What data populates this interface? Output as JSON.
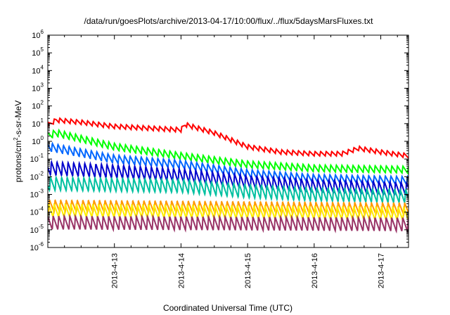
{
  "chart_data": {
    "type": "line",
    "title": "/data/run/goesPlots/archive/2013-04-17/10:00/flux/../flux/5daysMarsFluxes.txt",
    "xlabel": "Coordinated Universal Time (UTC)",
    "ylabel": {
      "base": "protons/cm",
      "exp": "2",
      "rest": "-s-sr-MeV"
    },
    "x_scale": "date",
    "xlim": [
      "2013-04-12 00:00",
      "2013-04-17 10:00"
    ],
    "x_ticks": [
      "2013-4-13",
      "2013-4-14",
      "2013-4-15",
      "2013-4-16",
      "2013-4-17"
    ],
    "y_scale": "log",
    "ylim": [
      1e-06,
      1000000.0
    ],
    "y_ticks": [
      {
        "base": "10",
        "exp": "-6"
      },
      {
        "base": "10",
        "exp": "-5"
      },
      {
        "base": "10",
        "exp": "-4"
      },
      {
        "base": "10",
        "exp": "-3"
      },
      {
        "base": "10",
        "exp": "-2"
      },
      {
        "base": "10",
        "exp": "-1"
      },
      {
        "base": "10",
        "exp": "0"
      },
      {
        "base": "10",
        "exp": "1"
      },
      {
        "base": "10",
        "exp": "2"
      },
      {
        "base": "10",
        "exp": "3"
      },
      {
        "base": "10",
        "exp": "4"
      },
      {
        "base": "10",
        "exp": "5"
      },
      {
        "base": "10",
        "exp": "6"
      }
    ],
    "grid": false,
    "legend": false,
    "series": [
      {
        "color": "#ff0000",
        "sawtooth_ratio": 1.8,
        "envelope": [
          [
            "2013-04-12 00:00",
            8
          ],
          [
            "2013-04-12 03:00",
            16
          ],
          [
            "2013-04-12 12:00",
            12
          ],
          [
            "2013-04-13 00:00",
            7
          ],
          [
            "2013-04-14 00:00",
            4.5
          ],
          [
            "2013-04-14 01:30",
            9
          ],
          [
            "2013-04-14 12:00",
            3
          ],
          [
            "2013-04-15 00:00",
            0.5
          ],
          [
            "2013-04-15 12:00",
            0.25
          ],
          [
            "2013-04-16 00:00",
            0.2
          ],
          [
            "2013-04-16 10:00",
            0.2
          ],
          [
            "2013-04-16 16:00",
            0.4
          ],
          [
            "2013-04-17 00:00",
            0.25
          ],
          [
            "2013-04-17 10:00",
            0.15
          ]
        ]
      },
      {
        "color": "#00ff00",
        "sawtooth_ratio": 2.5,
        "envelope": [
          [
            "2013-04-12 00:00",
            2
          ],
          [
            "2013-04-12 03:00",
            3
          ],
          [
            "2013-04-13 00:00",
            0.5
          ],
          [
            "2013-04-14 00:00",
            0.15
          ],
          [
            "2013-04-15 00:00",
            0.05
          ],
          [
            "2013-04-16 00:00",
            0.03
          ],
          [
            "2013-04-17 10:00",
            0.025
          ]
        ]
      },
      {
        "color": "#0066ff",
        "sawtooth_ratio": 3,
        "envelope": [
          [
            "2013-04-12 00:00",
            0.5
          ],
          [
            "2013-04-13 00:00",
            0.1
          ],
          [
            "2013-04-14 00:00",
            0.05
          ],
          [
            "2013-04-15 00:00",
            0.015
          ],
          [
            "2013-04-16 00:00",
            0.008
          ],
          [
            "2013-04-17 10:00",
            0.006
          ]
        ]
      },
      {
        "color": "#0000cc",
        "sawtooth_ratio": 6,
        "envelope": [
          [
            "2013-04-12 00:00",
            0.03
          ],
          [
            "2013-04-13 00:00",
            0.02
          ],
          [
            "2013-04-14 00:00",
            0.012
          ],
          [
            "2013-04-15 00:00",
            0.005
          ],
          [
            "2013-04-16 00:00",
            0.003
          ],
          [
            "2013-04-17 10:00",
            0.002
          ]
        ]
      },
      {
        "color": "#00c0a0",
        "sawtooth_ratio": 6,
        "envelope": [
          [
            "2013-04-12 00:00",
            0.004
          ],
          [
            "2013-04-14 00:00",
            0.003
          ],
          [
            "2013-04-15 00:00",
            0.0015
          ],
          [
            "2013-04-16 00:00",
            0.001
          ],
          [
            "2013-04-17 10:00",
            0.0008
          ]
        ]
      },
      {
        "color": "#ff9900",
        "sawtooth_ratio": 5,
        "envelope": [
          [
            "2013-04-12 00:00",
            0.00022
          ],
          [
            "2013-04-17 10:00",
            0.00015
          ]
        ]
      },
      {
        "color": "#ffee00",
        "sawtooth_ratio": 6,
        "envelope": [
          [
            "2013-04-12 00:00",
            0.00012
          ],
          [
            "2013-04-17 10:00",
            8e-05
          ]
        ]
      },
      {
        "color": "#993366",
        "sawtooth_ratio": 6,
        "envelope": [
          [
            "2013-04-12 00:00",
            2.5e-05
          ],
          [
            "2013-04-17 10:00",
            2e-05
          ]
        ]
      }
    ]
  }
}
